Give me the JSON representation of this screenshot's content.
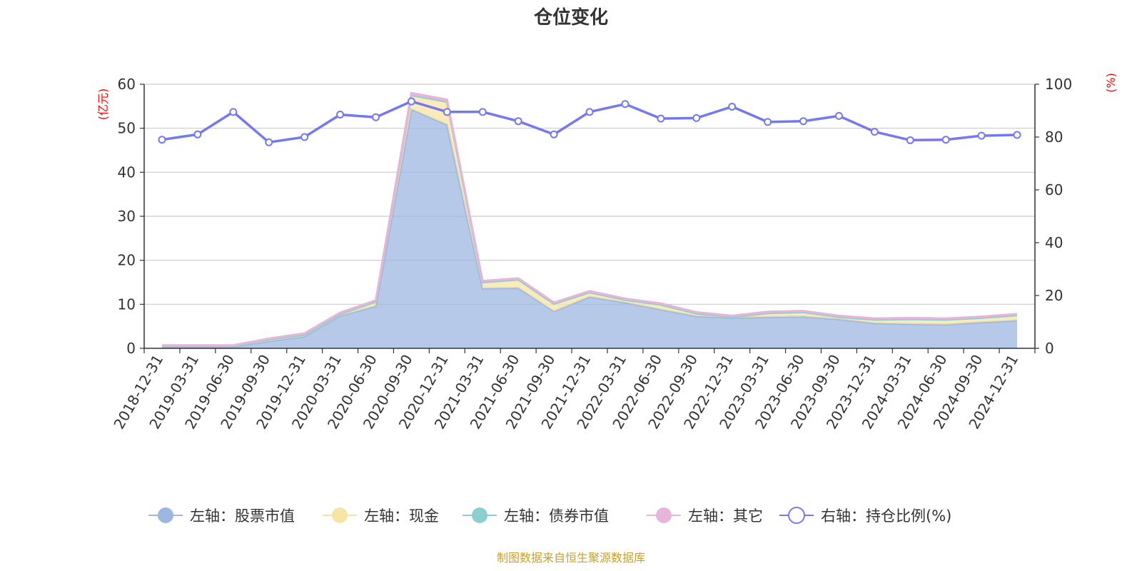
{
  "chart_data": {
    "type": "area",
    "title": "仓位变化",
    "left_axis_unit": "(亿元)",
    "right_axis_unit": "(%)",
    "categories": [
      "2018-12-31",
      "2019-03-31",
      "2019-06-30",
      "2019-09-30",
      "2019-12-31",
      "2020-03-31",
      "2020-06-30",
      "2020-09-30",
      "2020-12-31",
      "2021-03-31",
      "2021-06-30",
      "2021-09-30",
      "2021-12-31",
      "2022-03-31",
      "2022-06-30",
      "2022-09-30",
      "2022-12-31",
      "2023-03-31",
      "2023-06-30",
      "2023-09-30",
      "2023-12-31",
      "2024-03-31",
      "2024-06-30",
      "2024-09-30",
      "2024-12-31"
    ],
    "x_tick_labels": [
      "2018-12-31",
      "2019-03-31",
      "2019-06-30",
      "2019-09-30",
      "2019-12-31",
      "2020-03-31",
      "2020-06-30",
      "2020-09-30",
      "2020-12-31",
      "2021-03-31",
      "2021-06-30",
      "2021-09-30",
      "2021-12-31",
      "2022-03-31",
      "2022-06-30",
      "2022-09-30",
      "2022-12-31",
      "2023-03-31",
      "2023-06-30",
      "2023-09-30",
      "2023-12-31",
      "2024-03-31",
      "2024-06-30",
      "2024-09-30",
      "2024-12-31"
    ],
    "left_ylim": [
      0,
      60
    ],
    "left_ticks": [
      "0",
      "10",
      "20",
      "30",
      "40",
      "50",
      "60"
    ],
    "right_ylim": [
      0,
      100
    ],
    "right_ticks": [
      "0",
      "20",
      "40",
      "60",
      "80",
      "100"
    ],
    "grid": true,
    "stacked": true,
    "series": [
      {
        "name": "左轴：股票市值",
        "axis": "left",
        "kind": "area",
        "color": "#9db7e0",
        "values": [
          0.3,
          0.3,
          0.3,
          1.6,
          2.7,
          7.4,
          9.6,
          54.3,
          50.8,
          13.6,
          13.7,
          8.4,
          11.7,
          10.4,
          8.8,
          7.3,
          6.9,
          7.1,
          7.2,
          6.6,
          5.7,
          5.5,
          5.4,
          5.9,
          6.3
        ]
      },
      {
        "name": "左轴：现金",
        "axis": "left",
        "kind": "area",
        "color": "#f8e4a4",
        "values": [
          0.2,
          0.2,
          0.2,
          0.4,
          0.4,
          0.4,
          1.0,
          3.2,
          5.2,
          1.4,
          1.9,
          1.7,
          1.0,
          0.6,
          1.1,
          0.6,
          0.2,
          0.9,
          1.0,
          0.5,
          0.8,
          1.1,
          1.1,
          1.0,
          1.2
        ]
      },
      {
        "name": "左轴：债券市值",
        "axis": "left",
        "kind": "area",
        "color": "#8dcfcf",
        "values": [
          0,
          0,
          0,
          0,
          0,
          0,
          0,
          0,
          0,
          0,
          0,
          0,
          0,
          0,
          0,
          0,
          0,
          0,
          0,
          0,
          0,
          0,
          0,
          0,
          0
        ]
      },
      {
        "name": "左轴：其它",
        "axis": "left",
        "kind": "area",
        "color": "#e7b5da",
        "values": [
          0.2,
          0.2,
          0.2,
          0.2,
          0.3,
          0.3,
          0.3,
          0.5,
          0.5,
          0.3,
          0.3,
          0.3,
          0.3,
          0.3,
          0.3,
          0.3,
          0.3,
          0.3,
          0.3,
          0.3,
          0.3,
          0.3,
          0.3,
          0.3,
          0.3
        ]
      },
      {
        "name": "右轴：持仓比例(%)",
        "axis": "right",
        "kind": "line",
        "color": "#7579f0",
        "values": [
          79,
          81,
          89.5,
          78,
          80,
          88.5,
          87.5,
          93.5,
          89.5,
          89.5,
          86,
          81,
          89.5,
          92.5,
          87,
          87.2,
          91.5,
          85.7,
          86,
          88,
          82,
          78.8,
          79,
          80.5,
          80.8
        ]
      }
    ],
    "legend_position": "bottom",
    "source_note": "制图数据来自恒生聚源数据库"
  }
}
